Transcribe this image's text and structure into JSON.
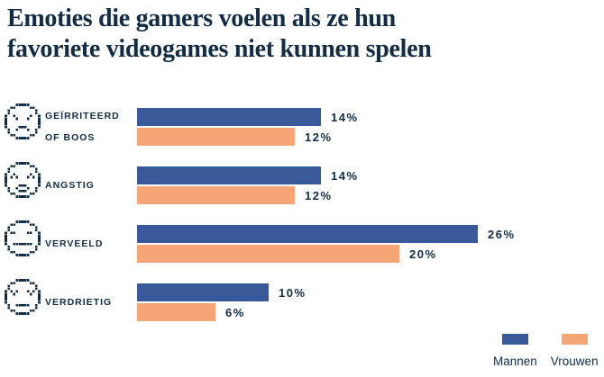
{
  "title_lines": [
    "Emoties die gamers voelen als ze hun",
    "favoriete videogames niet kunnen spelen"
  ],
  "colors": {
    "navy": "#112c44",
    "men_blue": "#3a599a",
    "women_orange": "#f5a576",
    "background": "#ffffff"
  },
  "legend": [
    {
      "label": "Mannen",
      "color": "#3a599a"
    },
    {
      "label": "Vrouwen",
      "color": "#f5a576"
    }
  ],
  "chart_data": {
    "type": "bar",
    "orientation": "horizontal",
    "title": "Emoties die gamers voelen als ze hun favoriete videogames niet kunnen spelen",
    "unit": "%",
    "xlim": [
      0,
      30
    ],
    "grid": false,
    "legend_position": "bottom-right",
    "categories": [
      {
        "label_lines": [
          "GEÏRRITEERD",
          "OF BOOS"
        ],
        "emoji": "angry"
      },
      {
        "label_lines": [
          "ANGSTIG"
        ],
        "emoji": "anxious"
      },
      {
        "label_lines": [
          "VERVEELD"
        ],
        "emoji": "bored"
      },
      {
        "label_lines": [
          "VERDRIETIG"
        ],
        "emoji": "sad"
      }
    ],
    "series": [
      {
        "name": "Mannen",
        "color": "#3a599a",
        "values": [
          14,
          14,
          26,
          10
        ]
      },
      {
        "name": "Vrouwen",
        "color": "#f5a576",
        "values": [
          12,
          12,
          20,
          6
        ]
      }
    ]
  }
}
